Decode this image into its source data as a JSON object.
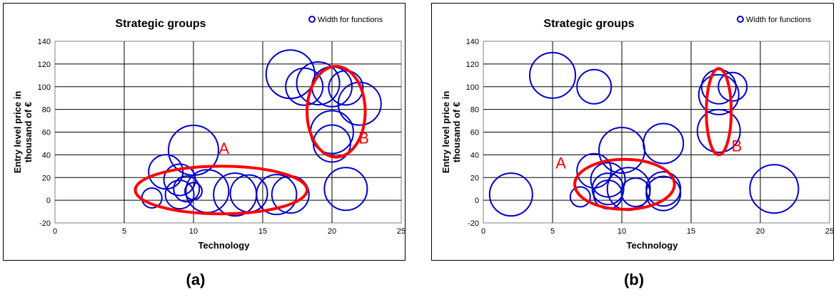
{
  "chart_data": [
    {
      "type": "scatter",
      "panel_label": "(a)",
      "title": "Strategic groups",
      "xlabel": "Technology",
      "ylabel": "Entry level price in thousand of €",
      "ylabel_lines": [
        "Entry level price in",
        "thousand of €"
      ],
      "xlim": [
        0,
        25
      ],
      "ylim": [
        -20,
        140
      ],
      "xticks": [
        0,
        5,
        10,
        15,
        20,
        25
      ],
      "yticks": [
        -20,
        0,
        20,
        40,
        60,
        80,
        100,
        120,
        140
      ],
      "grid": true,
      "legend": {
        "position": "top-right",
        "label": "Width for functions"
      },
      "bubble_color": "#0000cc",
      "group_color": "#ff0000",
      "series": [
        {
          "name": "Width for functions",
          "points": [
            {
              "x": 7,
              "y": 2,
              "size": 0.7
            },
            {
              "x": 8,
              "y": 25,
              "size": 1.2
            },
            {
              "x": 9,
              "y": 18,
              "size": 1.1
            },
            {
              "x": 9,
              "y": 5,
              "size": 1.0
            },
            {
              "x": 9.5,
              "y": 10,
              "size": 0.9
            },
            {
              "x": 10,
              "y": 44,
              "size": 1.75
            },
            {
              "x": 10,
              "y": 8,
              "size": 0.6
            },
            {
              "x": 11,
              "y": 8,
              "size": 1.5
            },
            {
              "x": 13,
              "y": 5,
              "size": 1.5
            },
            {
              "x": 14,
              "y": 6,
              "size": 1.3
            },
            {
              "x": 16,
              "y": 5,
              "size": 1.4
            },
            {
              "x": 17,
              "y": 5,
              "size": 1.3
            },
            {
              "x": 17,
              "y": 111,
              "size": 1.7
            },
            {
              "x": 18,
              "y": 100,
              "size": 1.3
            },
            {
              "x": 19,
              "y": 103,
              "size": 1.5
            },
            {
              "x": 20,
              "y": 100,
              "size": 1.4
            },
            {
              "x": 21,
              "y": 99,
              "size": 1.2
            },
            {
              "x": 22,
              "y": 85,
              "size": 1.5
            },
            {
              "x": 20,
              "y": 60,
              "size": 1.5
            },
            {
              "x": 20,
              "y": 50,
              "size": 1.3
            },
            {
              "x": 21,
              "y": 10,
              "size": 1.5
            }
          ]
        }
      ],
      "groups": [
        {
          "label": "A",
          "cx": 12,
          "cy": 9,
          "rx": 6.2,
          "ry": 21,
          "label_x": 12.2,
          "label_y": 41
        },
        {
          "label": "B",
          "cx": 20.3,
          "cy": 78,
          "rx": 2.1,
          "ry": 40,
          "label_x": 22.3,
          "label_y": 50
        }
      ]
    },
    {
      "type": "scatter",
      "panel_label": "(b)",
      "title": "Strategic groups",
      "xlabel": "Technology",
      "ylabel": "Entry level price in thousand of €",
      "ylabel_lines": [
        "Entry level price in",
        "thousand of €"
      ],
      "xlim": [
        0,
        25
      ],
      "ylim": [
        -20,
        140
      ],
      "xticks": [
        0,
        5,
        10,
        15,
        20,
        25
      ],
      "yticks": [
        -20,
        0,
        20,
        40,
        60,
        80,
        100,
        120,
        140
      ],
      "grid": true,
      "legend": {
        "position": "top-right",
        "label": "Width for functions"
      },
      "bubble_color": "#0000cc",
      "group_color": "#ff0000",
      "series": [
        {
          "name": "Width for functions",
          "points": [
            {
              "x": 2,
              "y": 5,
              "size": 1.5
            },
            {
              "x": 5,
              "y": 110,
              "size": 1.6
            },
            {
              "x": 8,
              "y": 100,
              "size": 1.2
            },
            {
              "x": 7,
              "y": 3,
              "size": 0.7
            },
            {
              "x": 8,
              "y": 26,
              "size": 1.2
            },
            {
              "x": 9,
              "y": 18,
              "size": 1.2
            },
            {
              "x": 9,
              "y": 5,
              "size": 1.0
            },
            {
              "x": 9,
              "y": 10,
              "size": 1.1
            },
            {
              "x": 10,
              "y": 44,
              "size": 1.6
            },
            {
              "x": 10.5,
              "y": 10,
              "size": 1.5
            },
            {
              "x": 11,
              "y": 7,
              "size": 1.0
            },
            {
              "x": 13,
              "y": 50,
              "size": 1.4
            },
            {
              "x": 13,
              "y": 10,
              "size": 1.2
            },
            {
              "x": 13,
              "y": 6,
              "size": 1.2
            },
            {
              "x": 17,
              "y": 100,
              "size": 1.2
            },
            {
              "x": 17,
              "y": 93,
              "size": 1.4
            },
            {
              "x": 18,
              "y": 100,
              "size": 1.0
            },
            {
              "x": 17,
              "y": 61,
              "size": 1.5
            },
            {
              "x": 21,
              "y": 10,
              "size": 1.7
            }
          ]
        }
      ],
      "groups": [
        {
          "label": "A",
          "cx": 10.2,
          "cy": 14,
          "rx": 3.6,
          "ry": 22,
          "label_x": 5.6,
          "label_y": 28
        },
        {
          "label": "B",
          "cx": 17,
          "cy": 78,
          "rx": 0.9,
          "ry": 38,
          "label_x": 18.3,
          "label_y": 43
        }
      ]
    }
  ]
}
